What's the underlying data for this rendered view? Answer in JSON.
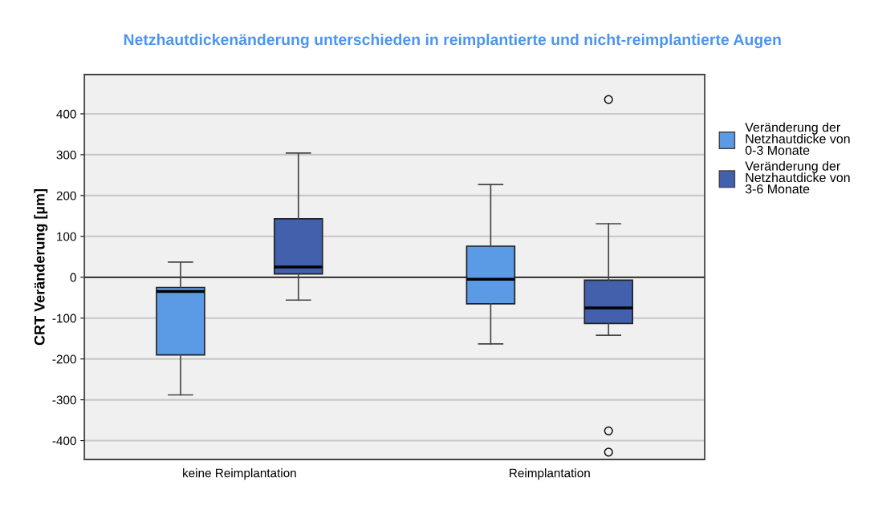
{
  "chart_data": {
    "type": "box",
    "title": "Netzhautdickenänderung unterschieden in reimplantierte und nicht-reimplantierte Augen",
    "ylabel": "CRT Veränderung [µm]",
    "categories": [
      "keine Reimplantation",
      "Reimplantation"
    ],
    "series": [
      {
        "name": "Veränderung der Netzhautdicke von 0-3 Monate",
        "color": "#5b9be6",
        "boxes": [
          {
            "low": -288,
            "q1": -190,
            "median": -35,
            "q3": -25,
            "high": 37
          },
          {
            "low": -163,
            "q1": -65,
            "median": -5,
            "q3": 76,
            "high": 227
          }
        ]
      },
      {
        "name": "Veränderung der Netzhautdicke von 3-6 Monate",
        "color": "#4360ad",
        "boxes": [
          {
            "low": -56,
            "q1": 8,
            "median": 25,
            "q3": 143,
            "high": 304
          },
          {
            "low": -142,
            "q1": -113,
            "median": -75,
            "q3": -7,
            "high": 131,
            "outliers": [
              435,
              -376,
              -428
            ]
          }
        ]
      }
    ],
    "ylim": [
      -446,
      496
    ],
    "yticks": [
      -400,
      -300,
      -200,
      -100,
      0,
      100,
      200,
      300,
      400
    ],
    "ref_lines": [
      {
        "axis": "y",
        "value": 0,
        "color": "#000000"
      }
    ],
    "grid": "y",
    "legend": "right"
  }
}
